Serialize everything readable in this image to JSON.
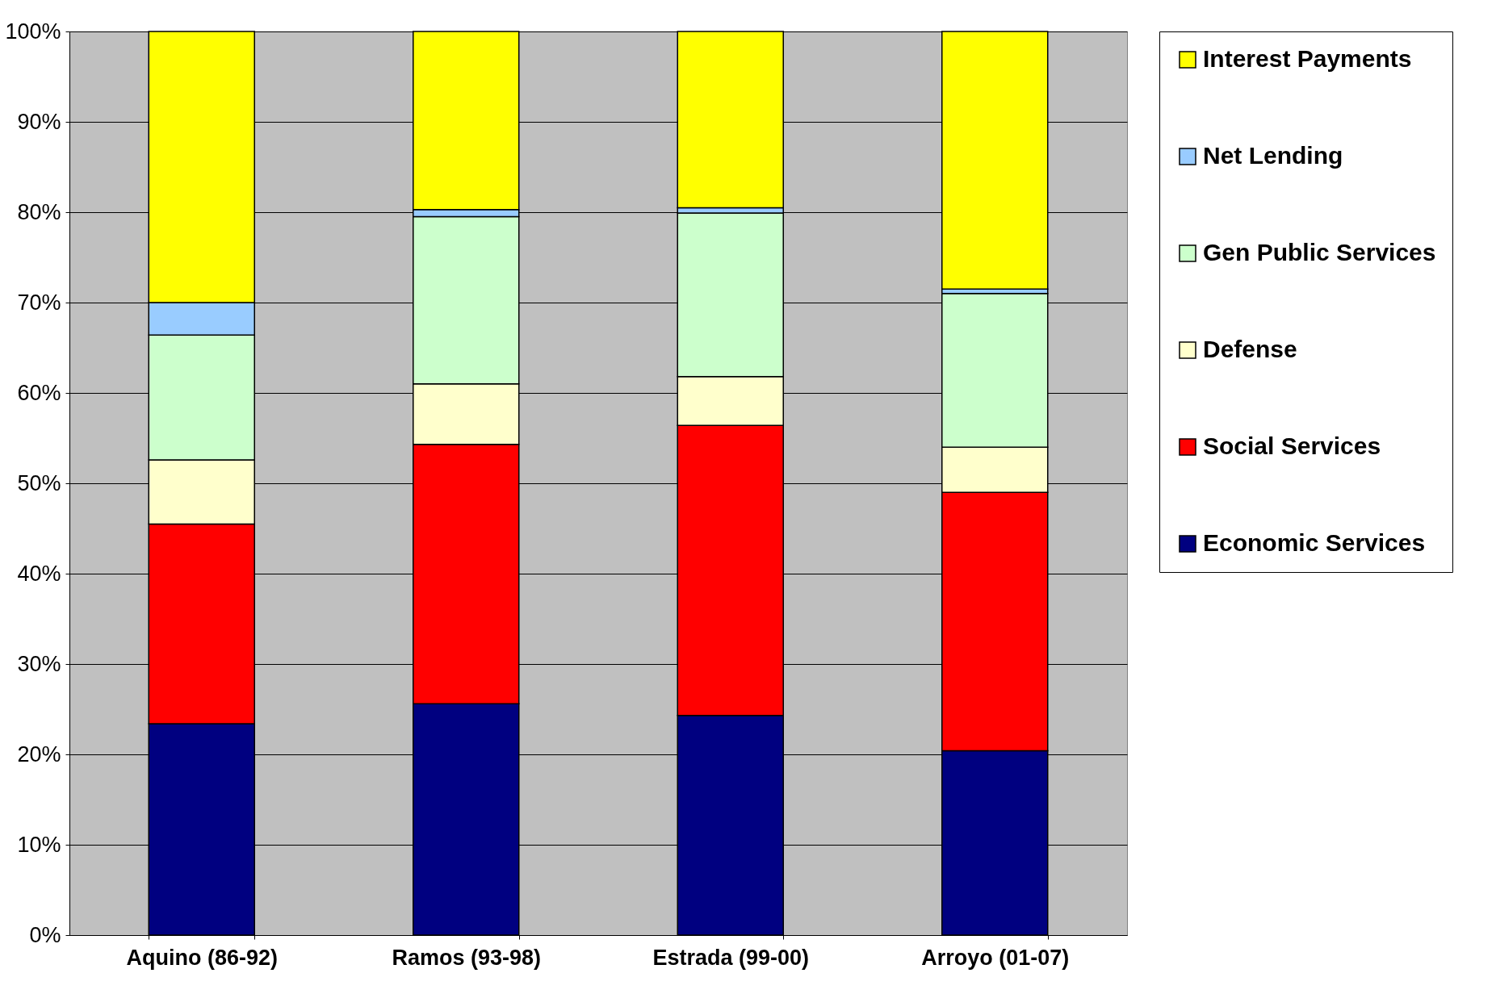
{
  "chart_data": {
    "type": "bar",
    "stacked": true,
    "categories": [
      "Aquino (86-92)",
      "Ramos (93-98)",
      "Estrada (99-00)",
      "Arroyo (01-07)"
    ],
    "series": [
      {
        "name": "Economic Services",
        "color": "#000080",
        "values": [
          23.4,
          25.6,
          24.3,
          20.4
        ]
      },
      {
        "name": "Social Services",
        "color": "#ff0000",
        "values": [
          22.1,
          28.7,
          32.1,
          28.6
        ]
      },
      {
        "name": "Defense",
        "color": "#ffffcc",
        "values": [
          7.1,
          6.7,
          5.4,
          5.0
        ]
      },
      {
        "name": "Gen Public Services",
        "color": "#ccffcc",
        "values": [
          13.8,
          18.5,
          18.1,
          17.0
        ]
      },
      {
        "name": "Net Lending",
        "color": "#99ccff",
        "values": [
          3.6,
          0.8,
          0.6,
          0.5
        ]
      },
      {
        "name": "Interest Payments",
        "color": "#ffff00",
        "values": [
          30.0,
          19.7,
          19.5,
          28.5
        ]
      }
    ],
    "ylim": [
      0,
      100
    ],
    "yticks": [
      {
        "value": 0,
        "label": "0%"
      },
      {
        "value": 10,
        "label": "10%"
      },
      {
        "value": 20,
        "label": "20%"
      },
      {
        "value": 30,
        "label": "30%"
      },
      {
        "value": 40,
        "label": "40%"
      },
      {
        "value": 50,
        "label": "50%"
      },
      {
        "value": 60,
        "label": "60%"
      },
      {
        "value": 70,
        "label": "70%"
      },
      {
        "value": 80,
        "label": "80%"
      },
      {
        "value": 90,
        "label": "90%"
      },
      {
        "value": 100,
        "label": "100%"
      }
    ],
    "grid": "y",
    "legend": "right"
  }
}
